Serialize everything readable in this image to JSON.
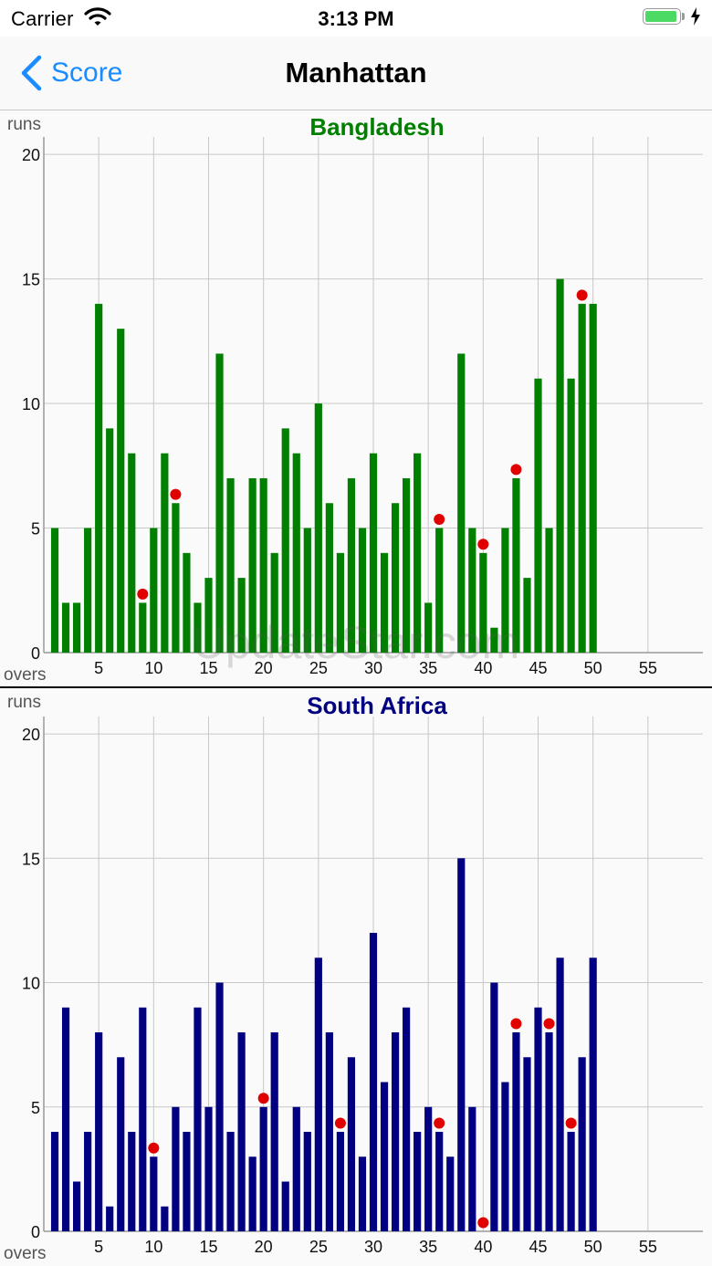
{
  "status_bar": {
    "carrier": "Carrier",
    "time": "3:13 PM"
  },
  "nav": {
    "back_label": "Score",
    "title": "Manhattan"
  },
  "charts": [
    {
      "title": "Bangladesh",
      "ylabel": "runs",
      "xlabel": "overs"
    },
    {
      "title": "South Africa",
      "ylabel": "runs",
      "xlabel": "overs"
    }
  ],
  "watermark": "UpdateStar.com",
  "colors": {
    "bangladesh": "#007f00",
    "south_africa": "#000080",
    "wicket": "#e00000",
    "back": "#1a8cff"
  },
  "chart_data": [
    {
      "type": "bar",
      "title": "Bangladesh",
      "ylabel": "runs",
      "xlabel": "overs",
      "xlim": [
        0,
        60
      ],
      "ylim": [
        0,
        20.7
      ],
      "xticks": [
        5,
        10,
        15,
        20,
        25,
        30,
        35,
        40,
        45,
        50,
        55
      ],
      "yticks": [
        0,
        5,
        10,
        15,
        20
      ],
      "x": [
        1,
        2,
        3,
        4,
        5,
        6,
        7,
        8,
        9,
        10,
        11,
        12,
        13,
        14,
        15,
        16,
        17,
        18,
        19,
        20,
        21,
        22,
        23,
        24,
        25,
        26,
        27,
        28,
        29,
        30,
        31,
        32,
        33,
        34,
        35,
        36,
        37,
        38,
        39,
        40,
        41,
        42,
        43,
        44,
        45,
        46,
        47,
        48,
        49,
        50
      ],
      "values": [
        5,
        2,
        2,
        5,
        14,
        9,
        13,
        8,
        2,
        5,
        8,
        6,
        4,
        2,
        3,
        12,
        7,
        3,
        7,
        7,
        4,
        9,
        8,
        5,
        10,
        6,
        4,
        7,
        5,
        8,
        4,
        6,
        7,
        8,
        2,
        5,
        0,
        12,
        5,
        4,
        1,
        5,
        7,
        3,
        11,
        5,
        15,
        11,
        14,
        14
      ],
      "wicket_overs": [
        9,
        12,
        36,
        40,
        43,
        49
      ],
      "color": "#007f00"
    },
    {
      "type": "bar",
      "title": "South Africa",
      "ylabel": "runs",
      "xlabel": "overs",
      "xlim": [
        0,
        60
      ],
      "ylim": [
        0,
        20.7
      ],
      "xticks": [
        5,
        10,
        15,
        20,
        25,
        30,
        35,
        40,
        45,
        50,
        55
      ],
      "yticks": [
        0,
        5,
        10,
        15,
        20
      ],
      "x": [
        1,
        2,
        3,
        4,
        5,
        6,
        7,
        8,
        9,
        10,
        11,
        12,
        13,
        14,
        15,
        16,
        17,
        18,
        19,
        20,
        21,
        22,
        23,
        24,
        25,
        26,
        27,
        28,
        29,
        30,
        31,
        32,
        33,
        34,
        35,
        36,
        37,
        38,
        39,
        40,
        41,
        42,
        43,
        44,
        45,
        46,
        47,
        48,
        49,
        50
      ],
      "values": [
        4,
        9,
        2,
        4,
        8,
        1,
        7,
        4,
        9,
        3,
        1,
        5,
        4,
        9,
        5,
        10,
        4,
        8,
        3,
        5,
        8,
        2,
        5,
        4,
        11,
        8,
        4,
        7,
        3,
        12,
        6,
        8,
        9,
        4,
        5,
        4,
        3,
        15,
        5,
        0,
        10,
        6,
        8,
        7,
        9,
        8,
        11,
        4,
        7,
        11
      ],
      "wicket_overs": [
        10,
        20,
        27,
        36,
        40,
        43,
        46,
        48
      ],
      "color": "#000080"
    }
  ]
}
